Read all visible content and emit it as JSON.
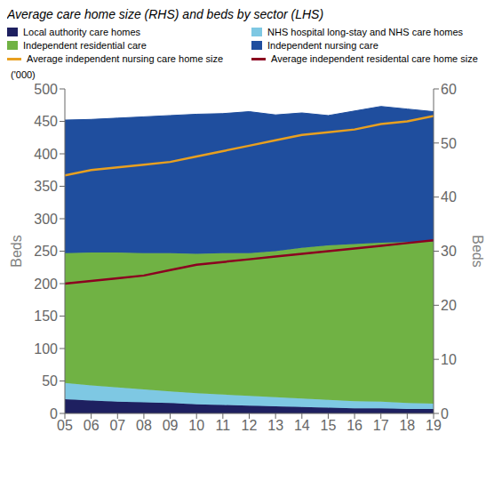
{
  "chart_data": {
    "type": "area",
    "title": "Average care home size (RHS) and beds by sector (LHS)",
    "stacked": true,
    "grid": false,
    "legend": "top left",
    "x": [
      5,
      6,
      7,
      8,
      9,
      10,
      11,
      12,
      13,
      14,
      15,
      16,
      17,
      18,
      19
    ],
    "xlim": [
      5,
      19
    ],
    "xticks": [
      {
        "value": 5,
        "label": "05"
      },
      {
        "value": 6,
        "label": "06"
      },
      {
        "value": 7,
        "label": "07"
      },
      {
        "value": 8,
        "label": "08"
      },
      {
        "value": 9,
        "label": "09"
      },
      {
        "value": 10,
        "label": "10"
      },
      {
        "value": 11,
        "label": "11"
      },
      {
        "value": 12,
        "label": "12"
      },
      {
        "value": 13,
        "label": "13"
      },
      {
        "value": 14,
        "label": "14"
      },
      {
        "value": 15,
        "label": "15"
      },
      {
        "value": 16,
        "label": "16"
      },
      {
        "value": 17,
        "label": "17"
      },
      {
        "value": 18,
        "label": "18"
      },
      {
        "value": 19,
        "label": "19"
      }
    ],
    "ylim": [
      0,
      500
    ],
    "yticks": [
      0,
      50,
      100,
      150,
      200,
      250,
      300,
      350,
      400,
      450,
      500
    ],
    "y2lim": [
      0,
      60
    ],
    "y2ticks": [
      0,
      10,
      20,
      30,
      40,
      50,
      60
    ],
    "y_label": "Beds",
    "y2_label": "Beds",
    "annotations": [
      "('000)"
    ],
    "series": [
      {
        "name": "Local authority care homes",
        "type": "area",
        "color": "#1e2060",
        "values": [
          22,
          20,
          18,
          17,
          16,
          14,
          13,
          12,
          11,
          10,
          9,
          8,
          8,
          7,
          7
        ]
      },
      {
        "name": "NHS hospital long-stay and NHS care homes",
        "type": "area",
        "color": "#7ec8e3",
        "values": [
          25,
          23,
          22,
          20,
          18,
          17,
          16,
          15,
          14,
          13,
          12,
          11,
          10,
          9,
          8
        ]
      },
      {
        "name": "Independent residential care",
        "type": "area",
        "color": "#70b244",
        "values": [
          200,
          205,
          208,
          210,
          213,
          215,
          218,
          220,
          225,
          232,
          238,
          242,
          245,
          248,
          250
        ]
      },
      {
        "name": "Independent nursing care",
        "type": "area",
        "color": "#1f4e9e",
        "values": [
          205,
          205,
          207,
          210,
          212,
          215,
          215,
          218,
          210,
          208,
          200,
          205,
          210,
          205,
          200
        ]
      },
      {
        "name": "Average independent nursing care home size",
        "type": "line",
        "axis": "y2",
        "color": "#e8a020",
        "values": [
          44,
          45,
          45.5,
          46,
          46.5,
          47.5,
          48.5,
          49.5,
          50.5,
          51.5,
          52,
          52.5,
          53.5,
          54,
          55
        ]
      },
      {
        "name": "Average independent residental care home size",
        "type": "line",
        "axis": "y2",
        "color": "#8b0020",
        "values": [
          24,
          24.5,
          25,
          25.5,
          26.5,
          27.5,
          28,
          28.5,
          29,
          29.5,
          30,
          30.5,
          31,
          31.5,
          32
        ]
      }
    ]
  }
}
